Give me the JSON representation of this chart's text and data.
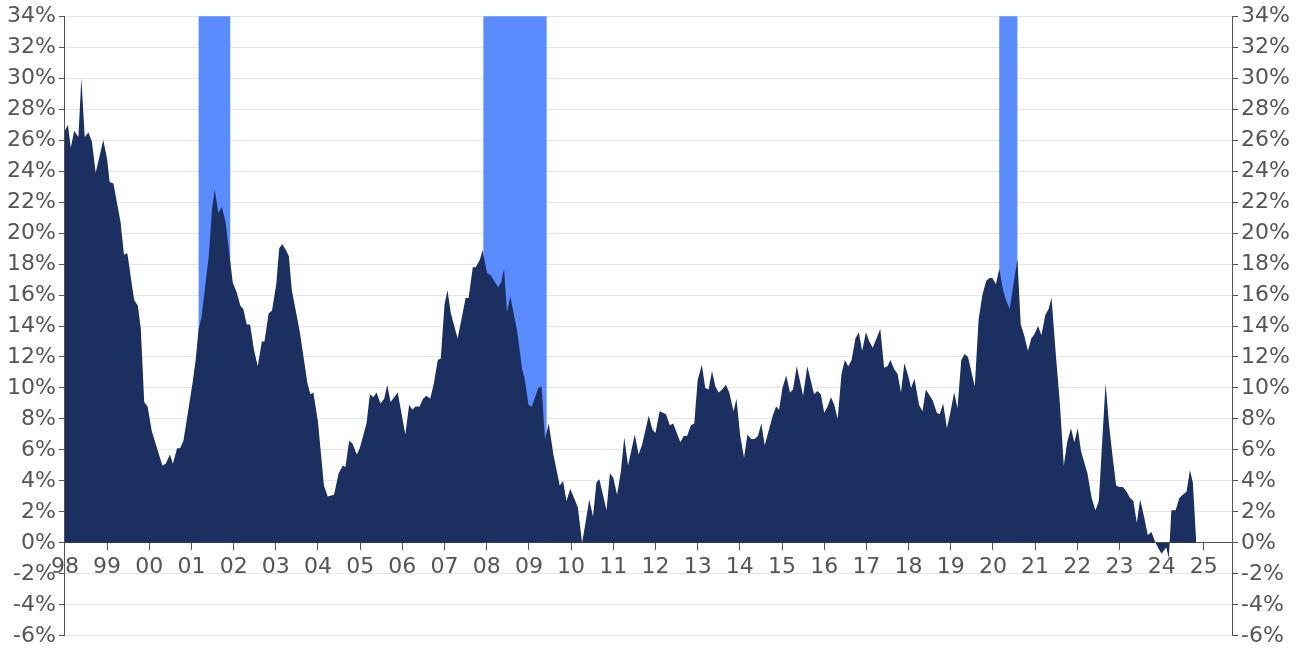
{
  "chart_data": {
    "type": "area",
    "marker": "none",
    "grid": "y",
    "legend": false,
    "xlim": [
      1998,
      2025.67
    ],
    "xticks": [
      {
        "value": 1998,
        "label": "98"
      },
      {
        "value": 1999,
        "label": "99"
      },
      {
        "value": 2000,
        "label": "00"
      },
      {
        "value": 2001,
        "label": "01"
      },
      {
        "value": 2002,
        "label": "02"
      },
      {
        "value": 2003,
        "label": "03"
      },
      {
        "value": 2004,
        "label": "04"
      },
      {
        "value": 2005,
        "label": "05"
      },
      {
        "value": 2006,
        "label": "06"
      },
      {
        "value": 2007,
        "label": "07"
      },
      {
        "value": 2008,
        "label": "08"
      },
      {
        "value": 2009,
        "label": "09"
      },
      {
        "value": 2010,
        "label": "10"
      },
      {
        "value": 2011,
        "label": "11"
      },
      {
        "value": 2012,
        "label": "12"
      },
      {
        "value": 2013,
        "label": "13"
      },
      {
        "value": 2014,
        "label": "14"
      },
      {
        "value": 2015,
        "label": "15"
      },
      {
        "value": 2016,
        "label": "16"
      },
      {
        "value": 2017,
        "label": "17"
      },
      {
        "value": 2018,
        "label": "18"
      },
      {
        "value": 2019,
        "label": "19"
      },
      {
        "value": 2020,
        "label": "20"
      },
      {
        "value": 2021,
        "label": "21"
      },
      {
        "value": 2022,
        "label": "22"
      },
      {
        "value": 2023,
        "label": "23"
      },
      {
        "value": 2024,
        "label": "24"
      },
      {
        "value": 2025,
        "label": "25"
      }
    ],
    "ylim": [
      -6,
      34
    ],
    "yticks": [
      {
        "value": -6,
        "label": "-6%"
      },
      {
        "value": -4,
        "label": "-4%"
      },
      {
        "value": -2,
        "label": "-2%"
      },
      {
        "value": 0,
        "label": "0%"
      },
      {
        "value": 2,
        "label": "2%"
      },
      {
        "value": 4,
        "label": "4%"
      },
      {
        "value": 6,
        "label": "6%"
      },
      {
        "value": 8,
        "label": "8%"
      },
      {
        "value": 10,
        "label": "10%"
      },
      {
        "value": 12,
        "label": "12%"
      },
      {
        "value": 14,
        "label": "14%"
      },
      {
        "value": 16,
        "label": "16%"
      },
      {
        "value": 18,
        "label": "18%"
      },
      {
        "value": 20,
        "label": "20%"
      },
      {
        "value": 22,
        "label": "22%"
      },
      {
        "value": 24,
        "label": "24%"
      },
      {
        "value": 26,
        "label": "26%"
      },
      {
        "value": 28,
        "label": "28%"
      },
      {
        "value": 30,
        "label": "30%"
      },
      {
        "value": 32,
        "label": "32%"
      },
      {
        "value": 34,
        "label": "34%"
      }
    ],
    "y2lim": [
      -6,
      34
    ],
    "y2ticks": [
      {
        "value": -6,
        "label": "-6%"
      },
      {
        "value": -4,
        "label": "-4%"
      },
      {
        "value": -2,
        "label": "-2%"
      },
      {
        "value": 0,
        "label": "0%"
      },
      {
        "value": 2,
        "label": "2%"
      },
      {
        "value": 4,
        "label": "4%"
      },
      {
        "value": 6,
        "label": "6%"
      },
      {
        "value": 8,
        "label": "8%"
      },
      {
        "value": 10,
        "label": "10%"
      },
      {
        "value": 12,
        "label": "12%"
      },
      {
        "value": 14,
        "label": "14%"
      },
      {
        "value": 16,
        "label": "16%"
      },
      {
        "value": 18,
        "label": "18%"
      },
      {
        "value": 20,
        "label": "20%"
      },
      {
        "value": 22,
        "label": "22%"
      },
      {
        "value": 24,
        "label": "24%"
      },
      {
        "value": 26,
        "label": "26%"
      },
      {
        "value": 28,
        "label": "28%"
      },
      {
        "value": 30,
        "label": "30%"
      },
      {
        "value": 32,
        "label": "32%"
      },
      {
        "value": 34,
        "label": "34%"
      }
    ],
    "bands": [
      {
        "axis": "x",
        "from": 2001.17,
        "to": 2001.92,
        "color": "#5b8cff"
      },
      {
        "axis": "x",
        "from": 2007.92,
        "to": 2009.42,
        "color": "#5b8cff"
      },
      {
        "axis": "x",
        "from": 2020.15,
        "to": 2020.58,
        "color": "#5b8cff"
      }
    ],
    "series": [
      {
        "color": "#1b3060",
        "x": [
          1998.0,
          1998.07,
          1998.14,
          1998.22,
          1998.32,
          1998.39,
          1998.47,
          1998.56,
          1998.64,
          1998.73,
          1998.91,
          1999.0,
          1999.06,
          1999.15,
          1999.32,
          1999.4,
          1999.48,
          1999.64,
          1999.73,
          1999.8,
          1999.88,
          1999.96,
          2000.06,
          2000.31,
          2000.39,
          2000.49,
          2000.56,
          2000.66,
          2000.73,
          2000.81,
          2001.02,
          2001.1,
          2001.17,
          2001.24,
          2001.41,
          2001.49,
          2001.55,
          2001.64,
          2001.72,
          2001.81,
          2001.98,
          2002.07,
          2002.16,
          2002.23,
          2002.31,
          2002.39,
          2002.48,
          2002.57,
          2002.67,
          2002.73,
          2002.83,
          2002.91,
          2003.01,
          2003.08,
          2003.15,
          2003.24,
          2003.31,
          2003.38,
          2003.57,
          2003.75,
          2003.82,
          2003.89,
          2004.0,
          2004.14,
          2004.23,
          2004.38,
          2004.49,
          2004.59,
          2004.65,
          2004.74,
          2004.82,
          2004.92,
          2004.99,
          2005.15,
          2005.23,
          2005.31,
          2005.39,
          2005.48,
          2005.57,
          2005.64,
          2005.72,
          2005.89,
          2006.07,
          2006.16,
          2006.24,
          2006.31,
          2006.41,
          2006.49,
          2006.57,
          2006.66,
          2006.74,
          2006.84,
          2006.91,
          2007.0,
          2007.07,
          2007.15,
          2007.31,
          2007.5,
          2007.57,
          2007.67,
          2007.74,
          2007.84,
          2007.9,
          2008.01,
          2008.09,
          2008.27,
          2008.34,
          2008.41,
          2008.48,
          2008.56,
          2008.72,
          2008.84,
          2008.9,
          2008.99,
          2009.07,
          2009.22,
          2009.3,
          2009.38,
          2009.47,
          2009.58,
          2009.73,
          2009.81,
          2009.89,
          2009.98,
          2010.16,
          2010.26,
          2010.33,
          2010.43,
          2010.52,
          2010.6,
          2010.67,
          2010.84,
          2010.92,
          2011.0,
          2011.09,
          2011.18,
          2011.26,
          2011.35,
          2011.51,
          2011.6,
          2011.68,
          2011.84,
          2011.93,
          2012.0,
          2012.1,
          2012.25,
          2012.34,
          2012.42,
          2012.59,
          2012.67,
          2012.75,
          2012.84,
          2012.92,
          2013.0,
          2013.1,
          2013.18,
          2013.26,
          2013.34,
          2013.42,
          2013.5,
          2013.58,
          2013.67,
          2013.75,
          2013.85,
          2013.92,
          2014.01,
          2014.1,
          2014.18,
          2014.27,
          2014.35,
          2014.43,
          2014.51,
          2014.59,
          2014.78,
          2014.86,
          2014.93,
          2015.01,
          2015.1,
          2015.19,
          2015.26,
          2015.35,
          2015.5,
          2015.6,
          2015.76,
          2015.84,
          2015.92,
          2016.0,
          2016.08,
          2016.16,
          2016.24,
          2016.32,
          2016.41,
          2016.49,
          2016.57,
          2016.65,
          2016.74,
          2016.82,
          2016.9,
          2016.99,
          2017.07,
          2017.15,
          2017.33,
          2017.42,
          2017.5,
          2017.57,
          2017.66,
          2017.74,
          2017.82,
          2017.9,
          2017.99,
          2018.06,
          2018.14,
          2018.25,
          2018.33,
          2018.41,
          2018.57,
          2018.67,
          2018.74,
          2018.82,
          2018.91,
          2018.99,
          2019.08,
          2019.16,
          2019.25,
          2019.33,
          2019.41,
          2019.57,
          2019.66,
          2019.75,
          2019.84,
          2019.92,
          2019.99,
          2020.07,
          2020.15,
          2020.24,
          2020.32,
          2020.4,
          2020.49,
          2020.58,
          2020.66,
          2020.74,
          2020.83,
          2020.91,
          2020.99,
          2021.07,
          2021.15,
          2021.24,
          2021.32,
          2021.39,
          2021.49,
          2021.59,
          2021.68,
          2021.76,
          2021.85,
          2021.93,
          2022.01,
          2022.09,
          2022.24,
          2022.34,
          2022.43,
          2022.51,
          2022.67,
          2022.75,
          2022.84,
          2022.92,
          2023.0,
          2023.08,
          2023.17,
          2023.25,
          2023.33,
          2023.41,
          2023.49,
          2023.59,
          2023.67,
          2023.76,
          2023.84,
          2023.93,
          2024.0,
          2024.05,
          2024.11,
          2024.17,
          2024.23,
          2024.33,
          2024.42,
          2024.5,
          2024.59,
          2024.67,
          2024.74,
          2024.82
        ],
        "values": [
          26.6,
          27.0,
          25.5,
          26.6,
          26.2,
          30.0,
          26.2,
          26.5,
          25.9,
          23.9,
          26.0,
          24.8,
          23.3,
          23.2,
          20.7,
          18.6,
          18.7,
          15.7,
          15.3,
          13.8,
          9.1,
          8.8,
          7.2,
          5.0,
          5.1,
          5.7,
          5.1,
          6.1,
          6.1,
          6.6,
          10.2,
          11.8,
          13.8,
          14.6,
          18.5,
          21.6,
          22.8,
          21.3,
          21.7,
          20.7,
          16.8,
          16.2,
          15.3,
          15.1,
          14.1,
          14.1,
          12.5,
          11.4,
          13.0,
          13.0,
          14.8,
          15.0,
          16.7,
          19.0,
          19.3,
          18.9,
          18.5,
          16.3,
          13.6,
          10.3,
          9.6,
          9.7,
          7.8,
          3.7,
          3.0,
          3.1,
          4.5,
          5.0,
          4.9,
          6.6,
          6.4,
          5.7,
          6.1,
          7.7,
          9.6,
          9.4,
          9.7,
          9.0,
          9.3,
          10.2,
          9.1,
          9.7,
          7.0,
          8.9,
          8.6,
          8.8,
          8.8,
          9.3,
          9.5,
          9.3,
          10.2,
          11.8,
          11.9,
          15.4,
          16.3,
          14.8,
          13.2,
          15.8,
          15.8,
          17.8,
          17.8,
          18.3,
          18.9,
          17.4,
          17.3,
          16.5,
          16.8,
          17.7,
          14.9,
          15.9,
          13.7,
          11.2,
          10.6,
          8.9,
          8.8,
          10.0,
          10.1,
          6.7,
          7.7,
          5.7,
          3.7,
          4.0,
          2.7,
          3.5,
          2.3,
          0,
          1.1,
          2.8,
          1.7,
          3.9,
          4.1,
          2.1,
          4.5,
          4.2,
          3.1,
          4.6,
          6.8,
          5.0,
          7.0,
          5.7,
          6.3,
          8.2,
          7.3,
          7.1,
          8.5,
          8.3,
          7.6,
          7.7,
          6.5,
          6.9,
          6.9,
          7.6,
          7.7,
          10.5,
          11.5,
          10.0,
          9.9,
          11.1,
          10.1,
          9.7,
          9.9,
          10.2,
          9.7,
          8.5,
          9.3,
          6.9,
          5.5,
          7.0,
          6.7,
          6.7,
          6.9,
          7.7,
          6.3,
          8.2,
          8.8,
          8.6,
          10.0,
          10.8,
          9.7,
          9.9,
          11.4,
          9.5,
          11.4,
          9.6,
          9.8,
          9.6,
          8.4,
          8.8,
          9.4,
          8.9,
          8.0,
          10.9,
          11.8,
          11.4,
          11.8,
          13.2,
          13.6,
          12.4,
          13.6,
          13.0,
          12.6,
          13.8,
          11.3,
          11.4,
          11.8,
          11.2,
          10.9,
          9.7,
          11.6,
          10.8,
          10.0,
          10.6,
          8.9,
          8.5,
          9.9,
          9.2,
          8.4,
          8.3,
          9.0,
          7.4,
          8.4,
          9.7,
          8.7,
          11.8,
          12.2,
          12.0,
          10.1,
          14.4,
          16.0,
          16.9,
          17.1,
          17.1,
          16.7,
          17.7,
          16.3,
          15.6,
          15.1,
          16.8,
          18.3,
          14.1,
          13.4,
          12.4,
          13.2,
          13.5,
          14.0,
          13.4,
          14.7,
          15.1,
          15.8,
          12.2,
          8.9,
          5.0,
          6.5,
          7.4,
          6.5,
          7.4,
          5.9,
          4.5,
          2.9,
          2.1,
          2.7,
          10.3,
          7.7,
          5.5,
          3.7,
          3.6,
          3.6,
          3.3,
          2.9,
          2.7,
          1.3,
          2.8,
          1.6,
          0.5,
          0.7,
          0.1,
          -0.4,
          -0.7,
          -0.5,
          -0.3,
          -1.0,
          2.1,
          2.1,
          2.9,
          3.1,
          3.3,
          4.7,
          3.9,
          0
        ]
      }
    ]
  }
}
